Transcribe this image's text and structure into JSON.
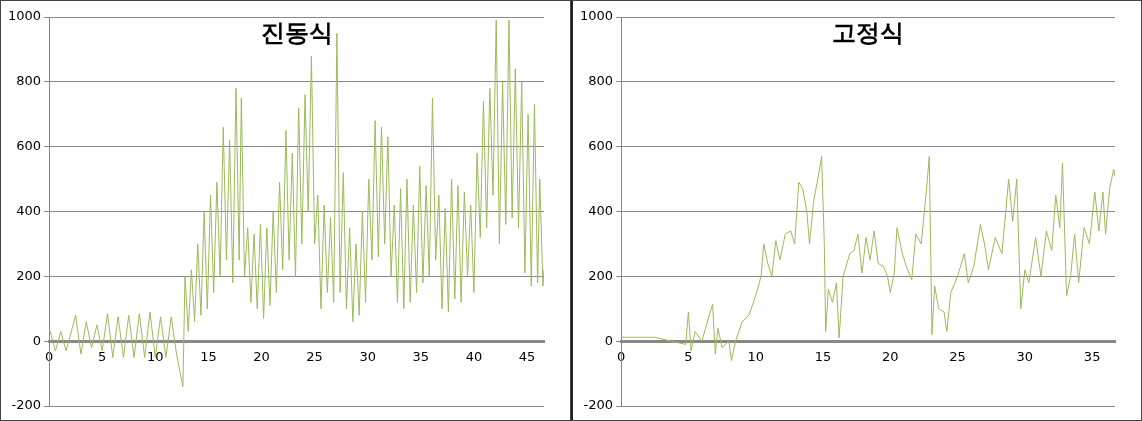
{
  "chart_data": [
    {
      "type": "line",
      "title": "진동식",
      "color": "#9bbb59",
      "marker": "none",
      "grid": "y",
      "xlim": [
        0,
        46.6
      ],
      "xticks": [
        0,
        5,
        10,
        15,
        20,
        25,
        30,
        35,
        40,
        45
      ],
      "ylim": [
        -200,
        1000
      ],
      "yticks": [
        -200,
        0,
        200,
        400,
        600,
        800,
        1000
      ],
      "x": [
        0.1,
        0.6,
        1.1,
        1.6,
        2.1,
        2.5,
        3,
        3.5,
        4,
        4.5,
        5,
        5.5,
        6,
        6.5,
        7,
        7.5,
        8,
        8.5,
        9,
        9.5,
        10,
        10.5,
        11,
        11.5,
        12,
        12.6,
        12.8,
        13.1,
        13.4,
        13.7,
        14.0,
        14.3,
        14.6,
        14.9,
        15.2,
        15.5,
        15.8,
        16.1,
        16.4,
        16.7,
        17.0,
        17.3,
        17.6,
        17.9,
        18.1,
        18.4,
        18.7,
        19.0,
        19.3,
        19.6,
        19.9,
        20.2,
        20.5,
        20.8,
        21.1,
        21.4,
        21.7,
        22.0,
        22.3,
        22.6,
        22.9,
        23.2,
        23.5,
        23.8,
        24.1,
        24.4,
        24.7,
        25.0,
        25.3,
        25.6,
        25.9,
        26.2,
        26.5,
        26.8,
        27.1,
        27.4,
        27.7,
        28.0,
        28.3,
        28.6,
        28.9,
        29.2,
        29.5,
        29.8,
        30.1,
        30.4,
        30.7,
        31.0,
        31.3,
        31.6,
        31.9,
        32.2,
        32.5,
        32.8,
        33.1,
        33.4,
        33.7,
        34.0,
        34.3,
        34.6,
        34.9,
        35.2,
        35.5,
        35.8,
        36.1,
        36.4,
        36.7,
        37.0,
        37.3,
        37.6,
        37.9,
        38.2,
        38.5,
        38.8,
        39.1,
        39.4,
        39.7,
        40.0,
        40.3,
        40.6,
        40.9,
        41.2,
        41.5,
        41.8,
        42.1,
        42.4,
        42.7,
        43.0,
        43.3,
        43.6,
        43.9,
        44.2,
        44.5,
        44.8,
        45.1,
        45.4,
        45.7,
        46.0,
        46.2,
        46.5,
        46.6
      ],
      "values": [
        30,
        -30,
        30,
        -30,
        30,
        80,
        -40,
        60,
        -20,
        50,
        -30,
        85,
        -50,
        75,
        -50,
        80,
        -50,
        85,
        -50,
        90,
        -50,
        75,
        -50,
        75,
        -40,
        -140,
        200,
        30,
        220,
        60,
        300,
        80,
        400,
        100,
        450,
        150,
        490,
        200,
        660,
        250,
        620,
        180,
        780,
        250,
        750,
        200,
        350,
        120,
        330,
        100,
        360,
        70,
        350,
        110,
        400,
        150,
        490,
        220,
        650,
        250,
        580,
        200,
        720,
        300,
        760,
        400,
        880,
        300,
        450,
        100,
        420,
        150,
        380,
        120,
        950,
        150,
        520,
        100,
        350,
        60,
        300,
        80,
        400,
        120,
        500,
        250,
        680,
        260,
        660,
        300,
        630,
        200,
        420,
        120,
        470,
        100,
        500,
        120,
        420,
        150,
        540,
        180,
        480,
        200,
        750,
        250,
        450,
        100,
        410,
        90,
        500,
        130,
        480,
        120,
        460,
        200,
        420,
        150,
        580,
        320,
        740,
        350,
        780,
        450,
        990,
        300,
        800,
        360,
        990,
        380,
        840,
        350,
        800,
        210,
        700,
        170,
        730,
        180,
        500,
        170,
        220
      ]
    },
    {
      "type": "line",
      "title": "고정식",
      "color": "#9bbb59",
      "marker": "none",
      "grid": "y",
      "xlim": [
        0,
        36.7
      ],
      "xticks": [
        0,
        5,
        10,
        15,
        20,
        25,
        30,
        35
      ],
      "ylim": [
        -200,
        1000
      ],
      "yticks": [
        -200,
        0,
        200,
        400,
        600,
        800,
        1000
      ],
      "x": [
        0.1,
        2.5,
        4.8,
        5.0,
        5.2,
        5.5,
        6,
        6.8,
        7.0,
        7.2,
        7.5,
        8,
        8.2,
        8.5,
        9,
        9.5,
        10,
        10.4,
        10.6,
        10.9,
        11.2,
        11.5,
        11.8,
        12.2,
        12.6,
        12.9,
        13.2,
        13.5,
        13.8,
        14,
        14.3,
        14.7,
        14.9,
        15.1,
        15.2,
        15.4,
        15.7,
        16.0,
        16.2,
        16.5,
        17,
        17.3,
        17.6,
        17.9,
        18.2,
        18.5,
        18.8,
        19.1,
        19.5,
        19.8,
        20,
        20.3,
        20.5,
        20.9,
        21.2,
        21.6,
        21.9,
        22.3,
        22.7,
        22.9,
        23.1,
        23.3,
        23.6,
        24,
        24.2,
        24.5,
        25,
        25.5,
        25.8,
        26.2,
        26.7,
        27,
        27.3,
        27.8,
        28.3,
        28.8,
        29.1,
        29.4,
        29.7,
        30,
        30.3,
        30.8,
        31.2,
        31.6,
        32.0,
        32.3,
        32.6,
        32.8,
        33.1,
        33.4,
        33.7,
        34.0,
        34.4,
        34.8,
        35.2,
        35.5,
        35.8,
        36.0,
        36.3,
        36.6,
        36.7
      ],
      "values": [
        12,
        12,
        -10,
        90,
        -30,
        30,
        0,
        115,
        -40,
        40,
        -20,
        0,
        -60,
        0,
        60,
        80,
        140,
        200,
        300,
        240,
        200,
        310,
        250,
        330,
        340,
        300,
        490,
        470,
        400,
        300,
        430,
        520,
        570,
        300,
        30,
        160,
        120,
        180,
        10,
        200,
        270,
        280,
        330,
        210,
        320,
        250,
        340,
        240,
        230,
        200,
        150,
        210,
        350,
        270,
        230,
        190,
        330,
        300,
        470,
        570,
        20,
        170,
        100,
        90,
        30,
        150,
        200,
        270,
        180,
        230,
        360,
        300,
        220,
        320,
        270,
        500,
        370,
        500,
        100,
        220,
        180,
        320,
        200,
        340,
        280,
        450,
        350,
        550,
        140,
        200,
        330,
        180,
        350,
        300,
        460,
        340,
        460,
        330,
        470,
        530,
        510
      ]
    }
  ]
}
